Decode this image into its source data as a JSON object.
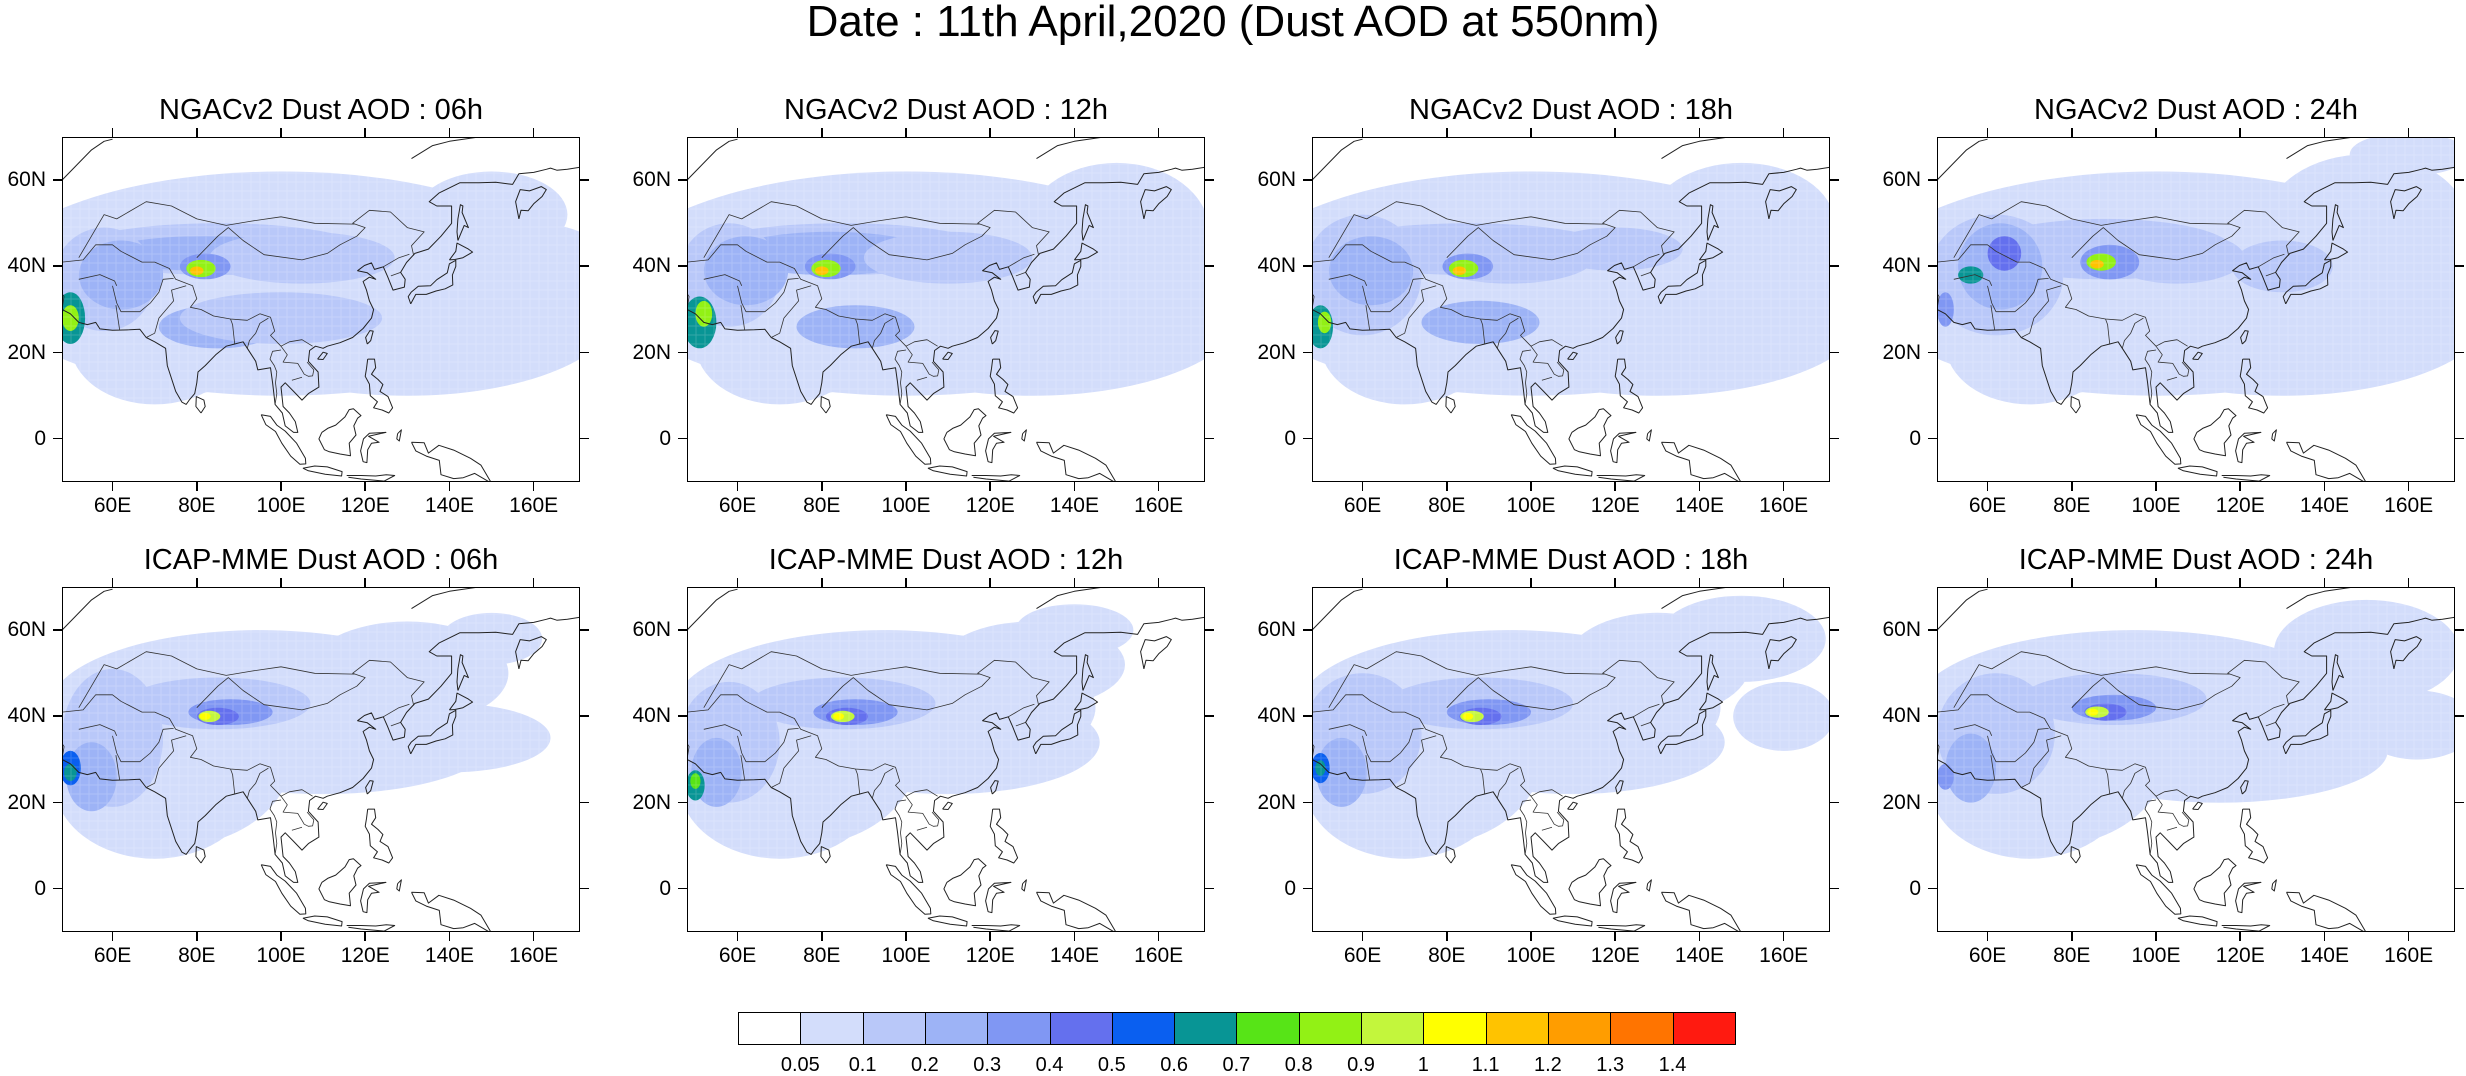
{
  "title": "Date : 11th April,2020 (Dust AOD at 550nm)",
  "lat_labels": [
    "60N",
    "40N",
    "20N",
    "0"
  ],
  "lat_values": [
    60,
    40,
    20,
    0
  ],
  "lon_labels": [
    "60E",
    "80E",
    "100E",
    "120E",
    "140E",
    "160E"
  ],
  "lon_values": [
    60,
    80,
    100,
    120,
    140,
    160
  ],
  "map_extent": {
    "lon_min": 48,
    "lon_max": 171,
    "lat_min": -10,
    "lat_max": 70
  },
  "panels": [
    {
      "title": "NGACv2 Dust AOD : 06h",
      "model": "NGACv2",
      "hour": "06h"
    },
    {
      "title": "NGACv2 Dust AOD : 12h",
      "model": "NGACv2",
      "hour": "12h"
    },
    {
      "title": "NGACv2 Dust AOD : 18h",
      "model": "NGACv2",
      "hour": "18h"
    },
    {
      "title": "NGACv2 Dust AOD : 24h",
      "model": "NGACv2",
      "hour": "24h"
    },
    {
      "title": "ICAP-MME Dust AOD : 06h",
      "model": "ICAP-MME",
      "hour": "06h"
    },
    {
      "title": "ICAP-MME Dust AOD : 12h",
      "model": "ICAP-MME",
      "hour": "12h"
    },
    {
      "title": "ICAP-MME Dust AOD : 18h",
      "model": "ICAP-MME",
      "hour": "18h"
    },
    {
      "title": "ICAP-MME Dust AOD : 24h",
      "model": "ICAP-MME",
      "hour": "24h"
    }
  ],
  "colorbar": {
    "labels": [
      "0.05",
      "0.1",
      "0.2",
      "0.3",
      "0.4",
      "0.5",
      "0.6",
      "0.7",
      "0.8",
      "0.9",
      "1",
      "1.1",
      "1.2",
      "1.3",
      "1.4"
    ],
    "colors": [
      "#ffffff",
      "#d3ddfb",
      "#b9c8f9",
      "#9db3f6",
      "#8097f3",
      "#6470ee",
      "#0a5ff0",
      "#089595",
      "#57e417",
      "#92f115",
      "#c3f63c",
      "#ffff00",
      "#ffc300",
      "#ff9d00",
      "#ff7400",
      "#ff1a10"
    ]
  }
}
